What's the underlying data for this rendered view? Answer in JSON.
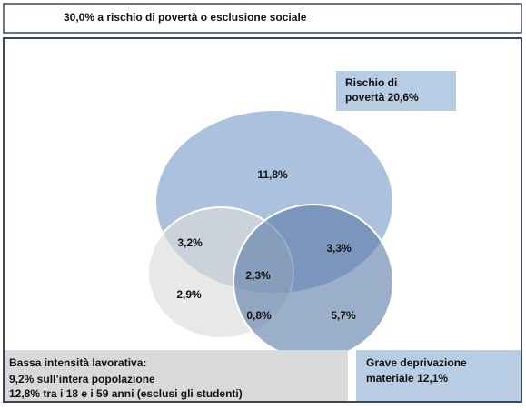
{
  "header": {
    "title": "30,0% a rischio di povertà o esclusione sociale"
  },
  "boxes": [
    {
      "lines": [
        "Rischio di",
        "povertà 20,6%"
      ]
    },
    {
      "lines": [
        "Bassa intensità lavorativa:",
        "9,2% sull’intera popolazione",
        "12,8% tra i 18 e i 59 anni (esclusi gli studenti)"
      ]
    },
    {
      "lines": [
        "Grave deprivazione",
        "materiale 12,1%"
      ]
    }
  ],
  "regions": [
    {
      "label": "11,8%"
    },
    {
      "label": "3,2%"
    },
    {
      "label": "3,3%"
    },
    {
      "label": "2,3%"
    },
    {
      "label": "2,9%"
    },
    {
      "label": "0,8%"
    },
    {
      "label": "5,7%"
    }
  ]
}
